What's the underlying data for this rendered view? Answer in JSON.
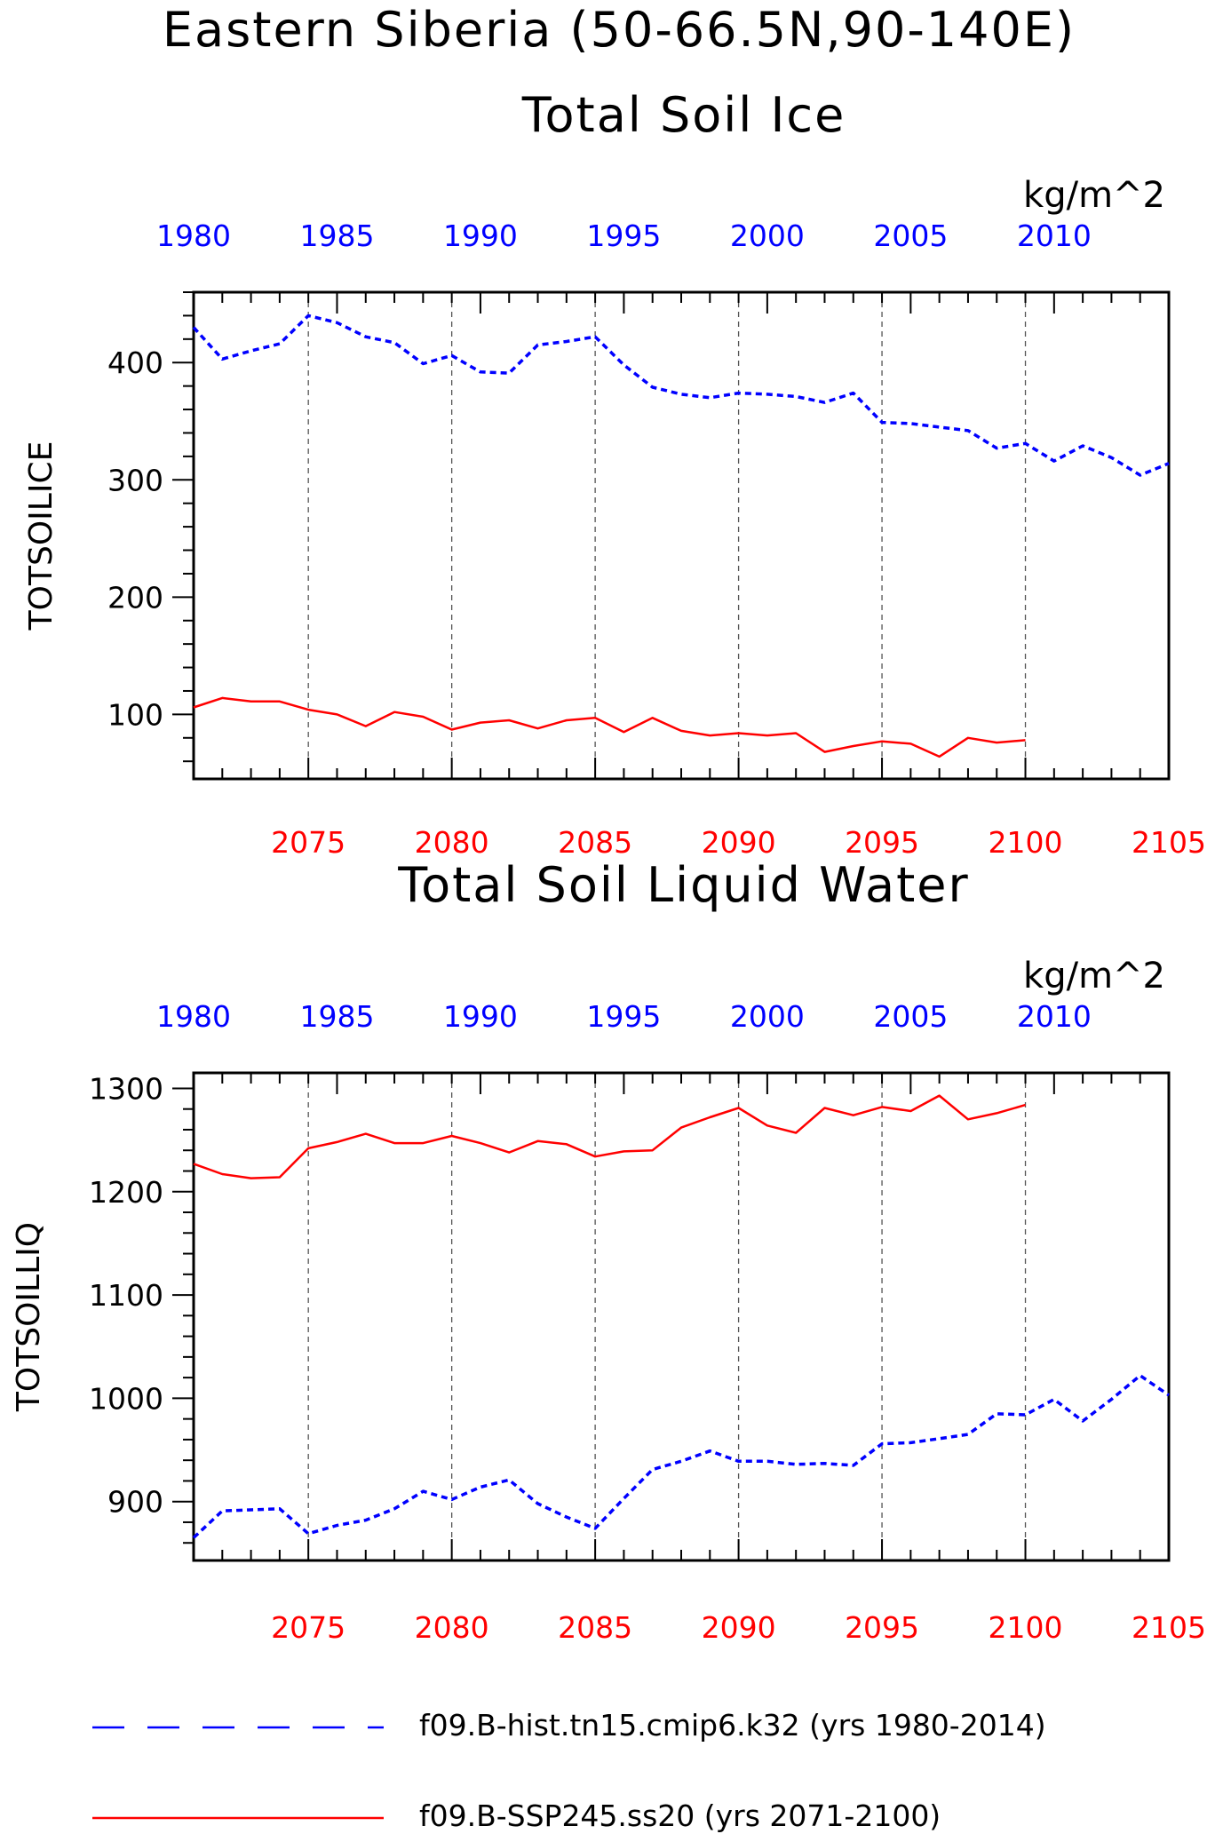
{
  "page": {
    "title_line1": "Eastern Siberia (50-66.5N,90-140E)",
    "colors": {
      "hist": "#0000ff",
      "ssp": "#ff0000",
      "grid": "#555555"
    }
  },
  "chart_data": [
    {
      "type": "line",
      "title": "Total Soil Ice",
      "units": "kg/m^2",
      "ylabel": "TOTSOILICE",
      "ylim": [
        45,
        460
      ],
      "yticks": [
        100,
        200,
        300,
        400
      ],
      "top_axis": {
        "labels": [
          "1980",
          "1985",
          "1990",
          "1995",
          "2000",
          "2005",
          "2010"
        ],
        "range": [
          1980,
          2014
        ]
      },
      "bottom_axis": {
        "labels": [
          "2075",
          "2080",
          "2085",
          "2090",
          "2095",
          "2100",
          "2105"
        ],
        "range": [
          2071,
          2105
        ]
      },
      "grid": "vertical dashed at 5-year marks",
      "series": [
        {
          "name": "f09.B-hist.tn15.cmip6.k32 (yrs 1980-2014)",
          "axis": "top",
          "style": "dashed",
          "color": "#0000ff",
          "x": [
            1980,
            1981,
            1982,
            1983,
            1984,
            1985,
            1986,
            1987,
            1988,
            1989,
            1990,
            1991,
            1992,
            1993,
            1994,
            1995,
            1996,
            1997,
            1998,
            1999,
            2000,
            2001,
            2002,
            2003,
            2004,
            2005,
            2006,
            2007,
            2008,
            2009,
            2010,
            2011,
            2012,
            2013,
            2014
          ],
          "values": [
            430,
            403,
            410,
            416,
            440,
            434,
            422,
            417,
            399,
            406,
            392,
            391,
            415,
            418,
            422,
            398,
            379,
            373,
            370,
            374,
            373,
            371,
            366,
            374,
            349,
            348,
            345,
            342,
            327,
            331,
            316,
            329,
            319,
            304,
            314
          ]
        },
        {
          "name": "f09.B-SSP245.ss20 (yrs 2071-2100)",
          "axis": "bottom",
          "style": "solid",
          "color": "#ff0000",
          "x": [
            2071,
            2072,
            2073,
            2074,
            2075,
            2076,
            2077,
            2078,
            2079,
            2080,
            2081,
            2082,
            2083,
            2084,
            2085,
            2086,
            2087,
            2088,
            2089,
            2090,
            2091,
            2092,
            2093,
            2094,
            2095,
            2096,
            2097,
            2098,
            2099,
            2100
          ],
          "values": [
            106,
            114,
            111,
            111,
            104,
            100,
            90,
            102,
            98,
            87,
            93,
            95,
            88,
            95,
            97,
            85,
            97,
            86,
            82,
            84,
            82,
            84,
            68,
            73,
            77,
            75,
            64,
            80,
            76,
            78
          ]
        }
      ]
    },
    {
      "type": "line",
      "title": "Total Soil Liquid Water",
      "units": "kg/m^2",
      "ylabel": "TOTSOILLIQ",
      "ylim": [
        843,
        1315
      ],
      "yticks": [
        900,
        1000,
        1100,
        1200,
        1300
      ],
      "top_axis": {
        "labels": [
          "1980",
          "1985",
          "1990",
          "1995",
          "2000",
          "2005",
          "2010"
        ],
        "range": [
          1980,
          2014
        ]
      },
      "bottom_axis": {
        "labels": [
          "2075",
          "2080",
          "2085",
          "2090",
          "2095",
          "2100",
          "2105"
        ],
        "range": [
          2071,
          2105
        ]
      },
      "grid": "vertical dashed at 5-year marks",
      "series": [
        {
          "name": "f09.B-hist.tn15.cmip6.k32 (yrs 1980-2014)",
          "axis": "top",
          "style": "dashed",
          "color": "#0000ff",
          "x": [
            1980,
            1981,
            1982,
            1983,
            1984,
            1985,
            1986,
            1987,
            1988,
            1989,
            1990,
            1991,
            1992,
            1993,
            1994,
            1995,
            1996,
            1997,
            1998,
            1999,
            2000,
            2001,
            2002,
            2003,
            2004,
            2005,
            2006,
            2007,
            2008,
            2009,
            2010,
            2011,
            2012,
            2013,
            2014
          ],
          "values": [
            865,
            891,
            892,
            893,
            869,
            877,
            882,
            893,
            910,
            902,
            914,
            921,
            898,
            885,
            874,
            903,
            931,
            939,
            949,
            939,
            939,
            936,
            937,
            935,
            956,
            957,
            961,
            965,
            985,
            984,
            999,
            978,
            999,
            1022,
            1003
          ]
        },
        {
          "name": "f09.B-SSP245.ss20 (yrs 2071-2100)",
          "axis": "bottom",
          "style": "solid",
          "color": "#ff0000",
          "x": [
            2071,
            2072,
            2073,
            2074,
            2075,
            2076,
            2077,
            2078,
            2079,
            2080,
            2081,
            2082,
            2083,
            2084,
            2085,
            2086,
            2087,
            2088,
            2089,
            2090,
            2091,
            2092,
            2093,
            2094,
            2095,
            2096,
            2097,
            2098,
            2099,
            2100
          ],
          "values": [
            1227,
            1217,
            1213,
            1214,
            1242,
            1248,
            1256,
            1247,
            1247,
            1254,
            1247,
            1238,
            1249,
            1246,
            1234,
            1239,
            1240,
            1262,
            1272,
            1281,
            1264,
            1257,
            1281,
            1274,
            1282,
            1278,
            1293,
            1270,
            1276,
            1284
          ]
        }
      ]
    }
  ],
  "legend": [
    {
      "label": "f09.B-hist.tn15.cmip6.k32 (yrs 1980-2014)",
      "style": "dashed",
      "color": "#0000ff"
    },
    {
      "label": "f09.B-SSP245.ss20 (yrs 2071-2100)",
      "style": "solid",
      "color": "#ff0000"
    }
  ]
}
